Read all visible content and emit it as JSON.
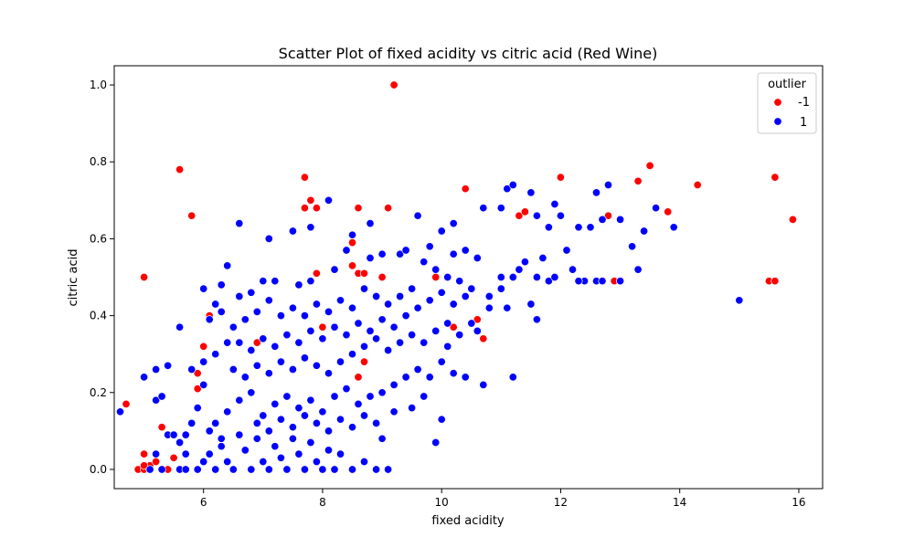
{
  "chart_data": {
    "type": "scatter",
    "title": "Scatter Plot of fixed acidity vs citric acid (Red Wine)",
    "xlabel": "fixed acidity",
    "ylabel": "citric acid",
    "xlim": [
      4.5,
      16.4
    ],
    "ylim": [
      -0.05,
      1.05
    ],
    "x_ticks": [
      "6",
      "8",
      "10",
      "12",
      "14",
      "16"
    ],
    "y_ticks": [
      "0.0",
      "0.2",
      "0.4",
      "0.6",
      "0.8",
      "1.0"
    ],
    "grid": false,
    "legend": {
      "title": "outlier",
      "placement": "top-right"
    },
    "series": [
      {
        "name": "-1",
        "color": "#ff0000",
        "points": [
          [
            9.2,
            1.0
          ],
          [
            5.6,
            0.78
          ],
          [
            7.7,
            0.76
          ],
          [
            5.8,
            0.66
          ],
          [
            5.0,
            0.5
          ],
          [
            4.7,
            0.17
          ],
          [
            7.8,
            0.7
          ],
          [
            7.7,
            0.68
          ],
          [
            7.9,
            0.68
          ],
          [
            8.6,
            0.68
          ],
          [
            9.1,
            0.68
          ],
          [
            10.4,
            0.73
          ],
          [
            12.0,
            0.76
          ],
          [
            13.3,
            0.75
          ],
          [
            13.5,
            0.79
          ],
          [
            14.3,
            0.74
          ],
          [
            15.6,
            0.76
          ],
          [
            15.9,
            0.65
          ],
          [
            13.8,
            0.67
          ],
          [
            11.3,
            0.66
          ],
          [
            11.4,
            0.67
          ],
          [
            12.8,
            0.66
          ],
          [
            12.9,
            0.49
          ],
          [
            15.5,
            0.49
          ],
          [
            15.6,
            0.49
          ],
          [
            8.5,
            0.59
          ],
          [
            8.5,
            0.53
          ],
          [
            8.6,
            0.51
          ],
          [
            8.7,
            0.51
          ],
          [
            7.9,
            0.51
          ],
          [
            9.0,
            0.5
          ],
          [
            9.9,
            0.5
          ],
          [
            10.2,
            0.37
          ],
          [
            10.6,
            0.39
          ],
          [
            10.7,
            0.34
          ],
          [
            8.0,
            0.37
          ],
          [
            6.1,
            0.4
          ],
          [
            6.0,
            0.32
          ],
          [
            6.9,
            0.33
          ],
          [
            5.9,
            0.25
          ],
          [
            5.9,
            0.21
          ],
          [
            5.3,
            0.11
          ],
          [
            5.5,
            0.03
          ],
          [
            5.0,
            0.04
          ],
          [
            5.1,
            0.01
          ],
          [
            5.2,
            0.02
          ],
          [
            4.9,
            0.0
          ],
          [
            5.0,
            0.0
          ],
          [
            5.1,
            0.0
          ],
          [
            5.4,
            0.0
          ],
          [
            5.0,
            0.01
          ],
          [
            8.6,
            0.24
          ],
          [
            8.7,
            0.28
          ]
        ]
      },
      {
        "name": "1",
        "color": "#0000ff",
        "points": [
          [
            15.0,
            0.44
          ],
          [
            4.6,
            0.15
          ],
          [
            5.0,
            0.24
          ],
          [
            5.2,
            0.26
          ],
          [
            5.2,
            0.18
          ],
          [
            5.4,
            0.27
          ],
          [
            5.3,
            0.19
          ],
          [
            5.6,
            0.37
          ],
          [
            6.0,
            0.47
          ],
          [
            6.3,
            0.48
          ],
          [
            6.4,
            0.53
          ],
          [
            6.2,
            0.43
          ],
          [
            6.6,
            0.64
          ],
          [
            7.1,
            0.6
          ],
          [
            7.5,
            0.62
          ],
          [
            7.8,
            0.63
          ],
          [
            8.1,
            0.7
          ],
          [
            8.5,
            0.61
          ],
          [
            8.8,
            0.64
          ],
          [
            9.3,
            0.56
          ],
          [
            9.6,
            0.66
          ],
          [
            10.0,
            0.62
          ],
          [
            10.2,
            0.64
          ],
          [
            10.7,
            0.68
          ],
          [
            11.0,
            0.68
          ],
          [
            11.1,
            0.73
          ],
          [
            11.2,
            0.74
          ],
          [
            11.5,
            0.72
          ],
          [
            11.6,
            0.66
          ],
          [
            11.8,
            0.63
          ],
          [
            11.9,
            0.69
          ],
          [
            12.0,
            0.66
          ],
          [
            12.3,
            0.63
          ],
          [
            12.5,
            0.63
          ],
          [
            12.6,
            0.72
          ],
          [
            12.7,
            0.65
          ],
          [
            12.8,
            0.74
          ],
          [
            13.0,
            0.65
          ],
          [
            13.2,
            0.58
          ],
          [
            13.4,
            0.62
          ],
          [
            13.6,
            0.68
          ],
          [
            13.9,
            0.63
          ],
          [
            12.2,
            0.52
          ],
          [
            12.4,
            0.49
          ],
          [
            12.6,
            0.49
          ],
          [
            12.7,
            0.49
          ],
          [
            13.0,
            0.49
          ],
          [
            13.3,
            0.52
          ],
          [
            11.7,
            0.55
          ],
          [
            12.1,
            0.57
          ],
          [
            11.4,
            0.54
          ],
          [
            11.6,
            0.5
          ],
          [
            11.8,
            0.49
          ],
          [
            11.2,
            0.5
          ],
          [
            11.0,
            0.47
          ],
          [
            11.5,
            0.43
          ],
          [
            11.6,
            0.39
          ],
          [
            11.1,
            0.42
          ],
          [
            10.8,
            0.45
          ],
          [
            10.5,
            0.47
          ],
          [
            10.3,
            0.49
          ],
          [
            10.1,
            0.5
          ],
          [
            9.9,
            0.52
          ],
          [
            9.7,
            0.54
          ],
          [
            9.5,
            0.47
          ],
          [
            9.3,
            0.45
          ],
          [
            9.1,
            0.43
          ],
          [
            8.9,
            0.45
          ],
          [
            8.7,
            0.47
          ],
          [
            8.5,
            0.42
          ],
          [
            8.3,
            0.44
          ],
          [
            8.1,
            0.41
          ],
          [
            7.9,
            0.43
          ],
          [
            7.7,
            0.4
          ],
          [
            7.5,
            0.42
          ],
          [
            7.3,
            0.4
          ],
          [
            7.1,
            0.44
          ],
          [
            6.9,
            0.41
          ],
          [
            6.7,
            0.39
          ],
          [
            6.5,
            0.37
          ],
          [
            6.3,
            0.41
          ],
          [
            6.1,
            0.39
          ],
          [
            10.6,
            0.55
          ],
          [
            10.4,
            0.57
          ],
          [
            10.2,
            0.56
          ],
          [
            9.8,
            0.58
          ],
          [
            9.4,
            0.57
          ],
          [
            9.0,
            0.56
          ],
          [
            8.8,
            0.55
          ],
          [
            8.4,
            0.57
          ],
          [
            8.2,
            0.52
          ],
          [
            7.8,
            0.49
          ],
          [
            7.6,
            0.48
          ],
          [
            7.2,
            0.49
          ],
          [
            7.0,
            0.49
          ],
          [
            6.8,
            0.46
          ],
          [
            6.6,
            0.45
          ],
          [
            6.4,
            0.33
          ],
          [
            6.2,
            0.3
          ],
          [
            6.0,
            0.28
          ],
          [
            5.8,
            0.26
          ],
          [
            5.7,
            0.09
          ],
          [
            5.6,
            0.07
          ],
          [
            5.4,
            0.09
          ],
          [
            5.7,
            0.04
          ],
          [
            5.6,
            0.0
          ],
          [
            5.7,
            0.0
          ],
          [
            5.9,
            0.0
          ],
          [
            6.0,
            0.02
          ],
          [
            6.1,
            0.04
          ],
          [
            6.2,
            0.0
          ],
          [
            6.3,
            0.06
          ],
          [
            6.4,
            0.02
          ],
          [
            6.5,
            0.0
          ],
          [
            6.6,
            0.09
          ],
          [
            6.7,
            0.05
          ],
          [
            6.8,
            0.0
          ],
          [
            6.9,
            0.08
          ],
          [
            7.0,
            0.02
          ],
          [
            7.1,
            0.0
          ],
          [
            7.2,
            0.06
          ],
          [
            7.3,
            0.03
          ],
          [
            7.4,
            0.0
          ],
          [
            7.5,
            0.08
          ],
          [
            7.6,
            0.04
          ],
          [
            7.7,
            0.0
          ],
          [
            7.8,
            0.07
          ],
          [
            7.9,
            0.02
          ],
          [
            8.0,
            0.0
          ],
          [
            8.1,
            0.05
          ],
          [
            8.2,
            0.0
          ],
          [
            8.3,
            0.04
          ],
          [
            8.5,
            0.0
          ],
          [
            8.7,
            0.02
          ],
          [
            8.9,
            0.0
          ],
          [
            9.1,
            0.0
          ],
          [
            9.9,
            0.07
          ],
          [
            10.0,
            0.13
          ],
          [
            6.2,
            0.12
          ],
          [
            6.4,
            0.15
          ],
          [
            6.6,
            0.18
          ],
          [
            6.8,
            0.2
          ],
          [
            7.0,
            0.14
          ],
          [
            7.2,
            0.17
          ],
          [
            7.4,
            0.19
          ],
          [
            7.6,
            0.16
          ],
          [
            7.8,
            0.18
          ],
          [
            8.0,
            0.15
          ],
          [
            8.2,
            0.19
          ],
          [
            8.4,
            0.21
          ],
          [
            8.6,
            0.17
          ],
          [
            8.8,
            0.19
          ],
          [
            9.0,
            0.2
          ],
          [
            9.2,
            0.22
          ],
          [
            9.4,
            0.24
          ],
          [
            9.6,
            0.26
          ],
          [
            9.8,
            0.24
          ],
          [
            10.0,
            0.28
          ],
          [
            10.2,
            0.25
          ],
          [
            10.4,
            0.24
          ],
          [
            10.7,
            0.22
          ],
          [
            11.2,
            0.24
          ],
          [
            6.5,
            0.26
          ],
          [
            6.7,
            0.24
          ],
          [
            6.9,
            0.27
          ],
          [
            7.1,
            0.25
          ],
          [
            7.3,
            0.28
          ],
          [
            7.5,
            0.26
          ],
          [
            7.7,
            0.29
          ],
          [
            7.9,
            0.27
          ],
          [
            8.1,
            0.25
          ],
          [
            8.3,
            0.28
          ],
          [
            8.5,
            0.3
          ],
          [
            8.7,
            0.32
          ],
          [
            8.9,
            0.34
          ],
          [
            9.1,
            0.31
          ],
          [
            9.3,
            0.33
          ],
          [
            9.5,
            0.35
          ],
          [
            9.7,
            0.33
          ],
          [
            9.9,
            0.36
          ],
          [
            10.1,
            0.38
          ],
          [
            10.3,
            0.35
          ],
          [
            10.5,
            0.38
          ],
          [
            6.6,
            0.33
          ],
          [
            6.8,
            0.31
          ],
          [
            7.0,
            0.34
          ],
          [
            7.2,
            0.32
          ],
          [
            7.4,
            0.35
          ],
          [
            7.6,
            0.33
          ],
          [
            7.8,
            0.36
          ],
          [
            8.0,
            0.34
          ],
          [
            8.2,
            0.37
          ],
          [
            8.4,
            0.35
          ],
          [
            8.6,
            0.38
          ],
          [
            8.8,
            0.36
          ],
          [
            9.0,
            0.39
          ],
          [
            9.2,
            0.37
          ],
          [
            9.4,
            0.4
          ],
          [
            9.6,
            0.42
          ],
          [
            9.8,
            0.44
          ],
          [
            10.0,
            0.46
          ],
          [
            10.2,
            0.43
          ],
          [
            10.4,
            0.45
          ],
          [
            5.9,
            0.16
          ],
          [
            6.0,
            0.22
          ],
          [
            6.1,
            0.1
          ],
          [
            6.3,
            0.08
          ],
          [
            5.8,
            0.12
          ],
          [
            5.5,
            0.09
          ],
          [
            5.1,
            0.0
          ],
          [
            5.2,
            0.04
          ],
          [
            5.3,
            0.0
          ],
          [
            6.9,
            0.12
          ],
          [
            7.1,
            0.1
          ],
          [
            7.3,
            0.13
          ],
          [
            7.5,
            0.11
          ],
          [
            7.7,
            0.14
          ],
          [
            7.9,
            0.12
          ],
          [
            8.1,
            0.1
          ],
          [
            8.3,
            0.13
          ],
          [
            8.5,
            0.11
          ],
          [
            8.7,
            0.14
          ],
          [
            8.9,
            0.12
          ],
          [
            9.0,
            0.08
          ],
          [
            9.2,
            0.15
          ],
          [
            9.5,
            0.16
          ],
          [
            9.7,
            0.19
          ],
          [
            10.1,
            0.32
          ],
          [
            10.6,
            0.36
          ],
          [
            10.8,
            0.42
          ],
          [
            11.0,
            0.5
          ],
          [
            11.3,
            0.52
          ],
          [
            11.9,
            0.5
          ],
          [
            12.3,
            0.49
          ]
        ]
      }
    ]
  }
}
